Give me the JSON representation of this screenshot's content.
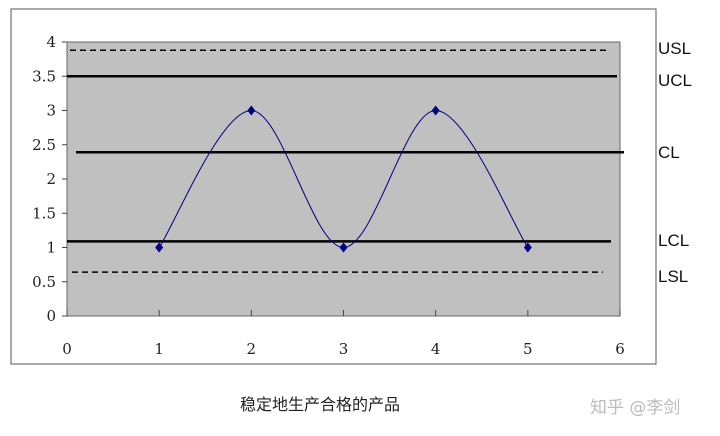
{
  "chart_data": {
    "type": "line",
    "title": "",
    "caption": "稳定地生产合格的产品",
    "xlabel": "",
    "ylabel": "",
    "xlim": [
      0,
      6
    ],
    "ylim": [
      0,
      4
    ],
    "xticks": [
      "0",
      "1",
      "2",
      "3",
      "4",
      "5",
      "6"
    ],
    "yticks": [
      "0",
      "0.5",
      "1",
      "1.5",
      "2",
      "2.5",
      "3",
      "3.5",
      "4"
    ],
    "grid": false,
    "plot_background": "#c0c0c0",
    "series": [
      {
        "x": [
          1,
          2,
          3,
          4,
          5
        ],
        "y": [
          1,
          3,
          1,
          3,
          1
        ],
        "color": "#000080",
        "smooth": true,
        "marker": "diamond"
      }
    ],
    "limit_lines": [
      {
        "label": "USL",
        "value": 3.88,
        "style": "dashed"
      },
      {
        "label": "UCL",
        "value": 3.5,
        "style": "solid"
      },
      {
        "label": "CL",
        "value": 2.39,
        "style": "solid"
      },
      {
        "label": "LCL",
        "value": 1.09,
        "style": "solid"
      },
      {
        "label": "LSL",
        "value": 0.64,
        "style": "dashed"
      }
    ]
  },
  "watermark": "知乎 @李剑"
}
